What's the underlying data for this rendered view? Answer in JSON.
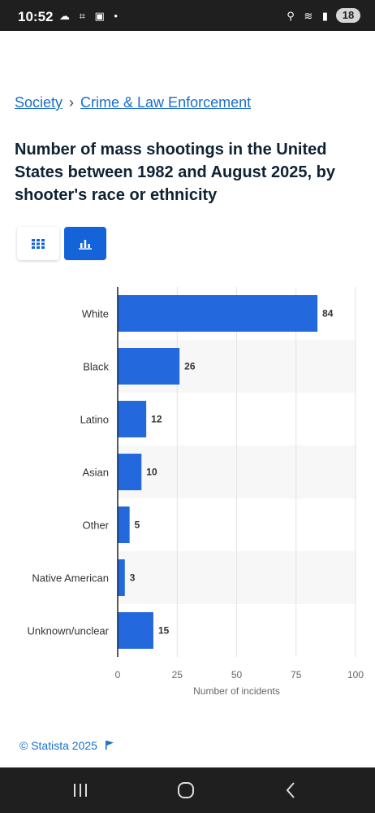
{
  "status_bar": {
    "time": "10:52",
    "left_icons": "☁ ⌗ ▣ •",
    "right_icons": "⚲ ≋ ▮",
    "battery": "18"
  },
  "breadcrumb": {
    "parent": "Society",
    "separator": "›",
    "current": "Crime & Law Enforcement"
  },
  "title": "Number of mass shootings in the United States between 1982 and August 2025, by shooter's race or ethnicity",
  "view_toggle": {
    "table_icon": "table-grid-icon",
    "chart_icon": "bar-chart-icon",
    "active": "chart"
  },
  "copyright": "© Statista 2025",
  "colors": {
    "bar": "#2368dd",
    "accent": "#1463d9",
    "link": "#1a6fc9"
  },
  "chart_data": {
    "type": "bar",
    "orientation": "horizontal",
    "categories": [
      "White",
      "Black",
      "Latino",
      "Asian",
      "Other",
      "Native American",
      "Unknown/unclear"
    ],
    "values": [
      84,
      26,
      12,
      10,
      5,
      3,
      15
    ],
    "xlabel": "Number of incidents",
    "xlim": [
      0,
      100
    ],
    "xticks": [
      0,
      25,
      50,
      75,
      100
    ],
    "grid": true
  },
  "navbar": {
    "recents_icon": "recents-icon",
    "home_icon": "home-icon",
    "back_icon": "back-icon"
  }
}
